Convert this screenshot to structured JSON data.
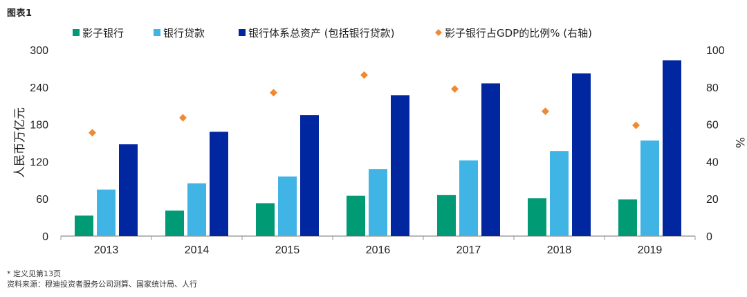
{
  "figure_label": "图表1",
  "footnote": "* 定义见第13页",
  "source": "资料来源：穆迪投资者服务公司测算、国家统计局、人行",
  "colors": {
    "shadow_bank": "#009A74",
    "bank_loans": "#40B4E5",
    "bank_assets": "#0026A0",
    "ratio": "#F08A32"
  },
  "chart_data": {
    "type": "bar",
    "categories": [
      "2013",
      "2014",
      "2015",
      "2016",
      "2017",
      "2018",
      "2019"
    ],
    "series": [
      {
        "name": "影子银行",
        "axis": "left",
        "type": "bar",
        "values": [
          33,
          41,
          53,
          65,
          66,
          61,
          59
        ]
      },
      {
        "name": "银行贷款",
        "axis": "left",
        "type": "bar",
        "values": [
          75,
          85,
          96,
          108,
          122,
          137,
          154
        ]
      },
      {
        "name": "银行体系总资产 (包括银行贷款)",
        "axis": "left",
        "type": "bar",
        "values": [
          148,
          168,
          195,
          227,
          246,
          262,
          283
        ]
      },
      {
        "name": "影子银行占GDP的比例% (右轴)",
        "axis": "right",
        "type": "scatter",
        "values": [
          55.5,
          63.5,
          77,
          86.5,
          79,
          67,
          59.5
        ]
      }
    ],
    "y_left": {
      "label": "人民币万亿元",
      "min": 0,
      "max": 300,
      "ticks": [
        "0",
        "60",
        "120",
        "180",
        "240",
        "300"
      ]
    },
    "y_right": {
      "label": "%",
      "min": 0,
      "max": 100,
      "ticks": [
        "0",
        "20",
        "40",
        "60",
        "80",
        "100"
      ]
    },
    "legend_position": "top"
  }
}
